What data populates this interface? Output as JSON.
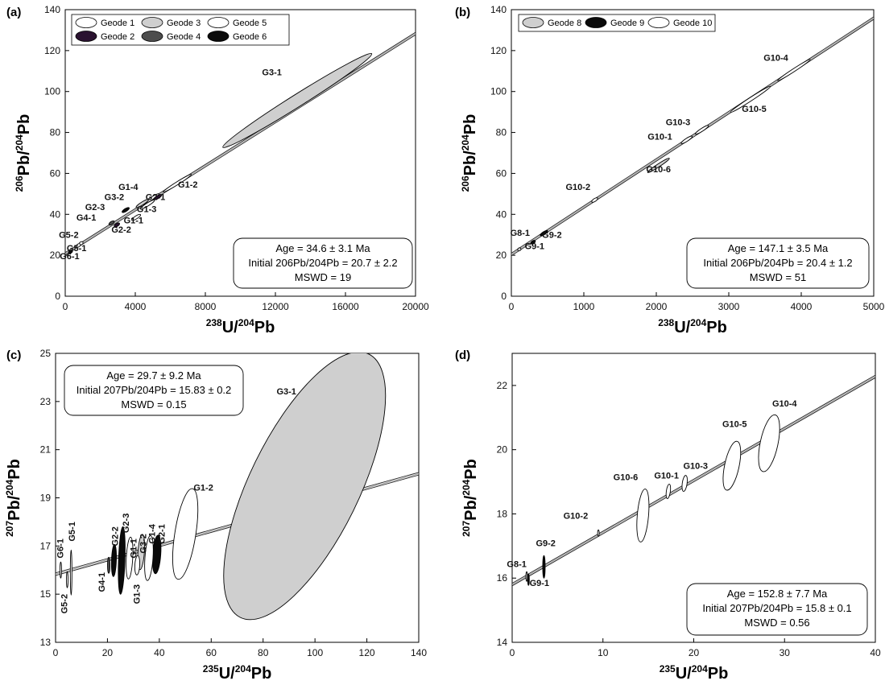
{
  "fill_colors": {
    "open": "#ffffff",
    "light": "#cfcfcf",
    "purple": "#2a1230",
    "dark": "#4d4d4d",
    "black": "#0a0a0a"
  },
  "chart_data": [
    {
      "panel": "(a)",
      "type": "scatter",
      "xlabel": {
        "sup": "238",
        "text": "U/"
      },
      "xlabel2": {
        "sup": "204",
        "text": "Pb"
      },
      "ylabel": {
        "sup": "206",
        "text": "Pb/"
      },
      "ylabel2": {
        "sup": "204",
        "text": "Pb"
      },
      "xlim": [
        0,
        20000
      ],
      "ylim": [
        0,
        140
      ],
      "xticks": [
        0,
        4000,
        8000,
        12000,
        16000,
        20000
      ],
      "yticks": [
        0,
        20,
        40,
        60,
        80,
        100,
        120,
        140
      ],
      "isochron": {
        "intercept": 20.7,
        "slope": 0.00538
      },
      "legend": [
        {
          "name": "Geode 1",
          "fill": "open"
        },
        {
          "name": "Geode 3",
          "fill": "light"
        },
        {
          "name": "Geode 5",
          "fill": "open"
        },
        {
          "name": "Geode 2",
          "fill": "purple"
        },
        {
          "name": "Geode 4",
          "fill": "dark"
        },
        {
          "name": "Geode 6",
          "fill": "black"
        }
      ],
      "stats": [
        "Age = 34.6 ± 3.1 Ma",
        "Initial 206Pb/204Pb = 20.7 ± 2.2",
        "MSWD = 19"
      ],
      "points": [
        {
          "label": "G3-1",
          "x": 13250,
          "y": 95.6,
          "len": 8500,
          "fill": "light",
          "lx": 11800,
          "ly": 108
        },
        {
          "label": "G1-2",
          "x": 6400,
          "y": 55.2,
          "len": 1600,
          "fill": "open",
          "lx": 7000,
          "ly": 53
        },
        {
          "label": "G1-4",
          "x": 4850,
          "y": 47.3,
          "len": 1000,
          "fill": "open",
          "lx": 3600,
          "ly": 52
        },
        {
          "label": "G2-1",
          "x": 5300,
          "y": 48.5,
          "len": 400,
          "fill": "purple",
          "lx": 5150,
          "ly": 47
        },
        {
          "label": "G3-2",
          "x": 4400,
          "y": 45.3,
          "len": 700,
          "fill": "light",
          "lx": 2800,
          "ly": 47
        },
        {
          "label": "G1-3",
          "x": 4700,
          "y": 44.8,
          "len": 800,
          "fill": "open",
          "lx": 4650,
          "ly": 41
        },
        {
          "label": "G2-3",
          "x": 3450,
          "y": 42.1,
          "len": 400,
          "fill": "black",
          "lx": 1700,
          "ly": 42
        },
        {
          "label": "G1-1",
          "x": 4050,
          "y": 38.5,
          "len": 500,
          "fill": "open",
          "lx": 3900,
          "ly": 35.5
        },
        {
          "label": "G4-1",
          "x": 2650,
          "y": 35.8,
          "len": 300,
          "fill": "dark",
          "lx": 1200,
          "ly": 37
        },
        {
          "label": "G2-2",
          "x": 2950,
          "y": 34.8,
          "len": 300,
          "fill": "purple",
          "lx": 3200,
          "ly": 31
        },
        {
          "label": "G5-2",
          "x": 900,
          "y": 25.8,
          "len": 220,
          "fill": "open",
          "lx": 200,
          "ly": 28.5
        },
        {
          "label": "G5-1",
          "x": 750,
          "y": 24.8,
          "len": 220,
          "fill": "open",
          "lx": 650,
          "ly": 22
        },
        {
          "label": "G6-1",
          "x": 300,
          "y": 21.7,
          "len": 220,
          "fill": "black",
          "lx": 250,
          "ly": 18
        }
      ]
    },
    {
      "panel": "(b)",
      "type": "scatter",
      "xlabel": {
        "sup": "238",
        "text": "U/"
      },
      "xlabel2": {
        "sup": "204",
        "text": "Pb"
      },
      "ylabel": {
        "sup": "206",
        "text": "Pb/"
      },
      "ylabel2": {
        "sup": "204",
        "text": "Pb"
      },
      "xlim": [
        0,
        5000
      ],
      "ylim": [
        0,
        140
      ],
      "xticks": [
        0,
        1000,
        2000,
        3000,
        4000,
        5000
      ],
      "yticks": [
        0,
        20,
        40,
        60,
        80,
        100,
        120,
        140
      ],
      "isochron": {
        "intercept": 20.4,
        "slope": 0.0231
      },
      "legend": [
        {
          "name": "Geode 8",
          "fill": "light"
        },
        {
          "name": "Geode 9",
          "fill": "black"
        },
        {
          "name": "Geode 10",
          "fill": "open"
        }
      ],
      "stats": [
        "Age = 147.1 ± 3.5 Ma",
        "Initial 206Pb/204Pb = 20.4 ± 1.2",
        "MSWD = 51"
      ],
      "points": [
        {
          "label": "G10-4",
          "x": 3900,
          "y": 110.5,
          "len": 450,
          "fill": "open",
          "lx": 3650,
          "ly": 115
        },
        {
          "label": "G10-5",
          "x": 3300,
          "y": 96.2,
          "len": 550,
          "fill": "open",
          "lx": 3350,
          "ly": 90
        },
        {
          "label": "G10-3",
          "x": 2630,
          "y": 81.3,
          "len": 180,
          "fill": "open",
          "lx": 2300,
          "ly": 83.5
        },
        {
          "label": "G10-1",
          "x": 2420,
          "y": 76.4,
          "len": 150,
          "fill": "open",
          "lx": 2050,
          "ly": 76.5
        },
        {
          "label": "G10-6",
          "x": 2030,
          "y": 63.9,
          "len": 300,
          "fill": "light",
          "lx": 2030,
          "ly": 60.5
        },
        {
          "label": "G10-2",
          "x": 1150,
          "y": 47.0,
          "len": 80,
          "fill": "open",
          "lx": 920,
          "ly": 52
        },
        {
          "label": "G9-2",
          "x": 450,
          "y": 30.8,
          "len": 100,
          "fill": "black",
          "lx": 560,
          "ly": 28.5
        },
        {
          "label": "G8-1",
          "x": 110,
          "y": 22.9,
          "len": 40,
          "fill": "light",
          "lx": 120,
          "ly": 29.5
        },
        {
          "label": "G9-1",
          "x": 300,
          "y": 26.4,
          "len": 60,
          "fill": "black",
          "lx": 320,
          "ly": 23
        }
      ]
    },
    {
      "panel": "(c)",
      "type": "scatter",
      "xlabel": {
        "sup": "235",
        "text": "U/"
      },
      "xlabel2": {
        "sup": "204",
        "text": "Pb"
      },
      "ylabel": {
        "sup": "207",
        "text": "Pb/"
      },
      "ylabel2": {
        "sup": "204",
        "text": "Pb"
      },
      "xlim": [
        0,
        140
      ],
      "ylim": [
        13,
        25
      ],
      "xticks": [
        0,
        20,
        40,
        60,
        80,
        100,
        120,
        140
      ],
      "yticks": [
        13,
        15,
        17,
        19,
        21,
        23,
        25
      ],
      "isochron": {
        "intercept": 15.83,
        "slope": 0.0298
      },
      "stats": [
        "Age = 29.7 ± 9.2 Ma",
        "Initial 207Pb/204Pb = 15.83 ± 0.2",
        "MSWD = 0.15"
      ],
      "points": [
        {
          "label": "G3-1",
          "x": 96,
          "y": 19.5,
          "rx": 68,
          "ry": 182,
          "rot": 26,
          "fill": "light",
          "lx": 89,
          "ly": 23.3,
          "vert": false
        },
        {
          "label": "G1-2",
          "x": 50,
          "y": 17.5,
          "rx": 13,
          "ry": 57,
          "rot": 9,
          "fill": "open",
          "lx": 57,
          "ly": 19.3,
          "vert": false
        },
        {
          "label": "G2-1",
          "x": 39,
          "y": 16.65,
          "rx": 5,
          "ry": 24,
          "rot": 4,
          "fill": "black",
          "lx": 42,
          "ly": 17.5,
          "vert": true
        },
        {
          "label": "G1-4",
          "x": 36,
          "y": 16.5,
          "rx": 5,
          "ry": 28,
          "rot": 4,
          "fill": "open",
          "lx": 38.3,
          "ly": 17.5,
          "vert": true
        },
        {
          "label": "G3-2",
          "x": 33,
          "y": 16.75,
          "rx": 4,
          "ry": 22,
          "rot": 4,
          "fill": "light",
          "lx": 35,
          "ly": 17.1,
          "vert": true
        },
        {
          "label": "G1-1",
          "x": 28.5,
          "y": 16.5,
          "rx": 4,
          "ry": 26,
          "rot": 3,
          "fill": "open",
          "lx": 31.2,
          "ly": 16.9,
          "vert": true
        },
        {
          "label": "G1-3",
          "x": 31.5,
          "y": 16.2,
          "rx": 3,
          "ry": 12,
          "rot": 3,
          "fill": "open",
          "lx": 32.5,
          "ly": 15.0,
          "vert": true
        },
        {
          "label": "G2-3",
          "x": 25.5,
          "y": 16.4,
          "rx": 4,
          "ry": 42,
          "rot": 2,
          "fill": "black",
          "lx": 28.2,
          "ly": 17.95,
          "vert": true
        },
        {
          "label": "G2-2",
          "x": 22.5,
          "y": 16.4,
          "rx": 3,
          "ry": 20,
          "rot": 2,
          "fill": "black",
          "lx": 24,
          "ly": 17.4,
          "vert": true
        },
        {
          "label": "G4-1",
          "x": 20.5,
          "y": 16.2,
          "rx": 1.5,
          "ry": 10,
          "rot": 0,
          "fill": "dark",
          "lx": 19,
          "ly": 15.5,
          "vert": true
        },
        {
          "label": "G6-1",
          "x": 2,
          "y": 16.0,
          "rx": 1,
          "ry": 10,
          "rot": 0,
          "fill": "open",
          "lx": 3,
          "ly": 16.9,
          "vert": true
        },
        {
          "label": "G5-1",
          "x": 6,
          "y": 15.9,
          "rx": 1,
          "ry": 28,
          "rot": 0,
          "fill": "open",
          "lx": 7.5,
          "ly": 17.6,
          "vert": true
        },
        {
          "label": "G5-2",
          "x": 4.5,
          "y": 15.6,
          "rx": 1,
          "ry": 10,
          "rot": 0,
          "fill": "open",
          "lx": 4.5,
          "ly": 14.6,
          "vert": true
        }
      ]
    },
    {
      "panel": "(d)",
      "type": "scatter",
      "xlabel": {
        "sup": "235",
        "text": "U/"
      },
      "xlabel2": {
        "sup": "204",
        "text": "Pb"
      },
      "ylabel": {
        "sup": "207",
        "text": "Pb/"
      },
      "ylabel2": {
        "sup": "204",
        "text": "Pb"
      },
      "xlim": [
        0,
        40
      ],
      "ylim": [
        14,
        23
      ],
      "xticks": [
        0,
        10,
        20,
        30,
        40
      ],
      "yticks": [
        14,
        16,
        18,
        20,
        22
      ],
      "isochron": {
        "intercept": 15.8,
        "slope": 0.162
      },
      "stats": [
        "Age = 152.8 ± 7.7 Ma",
        "Initial 207Pb/204Pb = 15.8 ± 0.1",
        "MSWD = 0.56"
      ],
      "points": [
        {
          "label": "G10-4",
          "x": 28.3,
          "y": 20.2,
          "rx": 11,
          "ry": 36,
          "rot": 12,
          "fill": "open",
          "lx": 30,
          "ly": 21.35
        },
        {
          "label": "G10-5",
          "x": 24.2,
          "y": 19.5,
          "rx": 9,
          "ry": 31,
          "rot": 12,
          "fill": "open",
          "lx": 24.5,
          "ly": 20.7
        },
        {
          "label": "G10-3",
          "x": 19.0,
          "y": 18.95,
          "rx": 3,
          "ry": 10,
          "rot": 8,
          "fill": "open",
          "lx": 20.2,
          "ly": 19.4
        },
        {
          "label": "G10-1",
          "x": 17.2,
          "y": 18.7,
          "rx": 2.5,
          "ry": 9,
          "rot": 8,
          "fill": "open",
          "lx": 17,
          "ly": 19.1
        },
        {
          "label": "G10-6",
          "x": 14.4,
          "y": 17.95,
          "rx": 7,
          "ry": 33,
          "rot": 5,
          "fill": "open",
          "lx": 12.5,
          "ly": 19.05
        },
        {
          "label": "G10-2",
          "x": 9.5,
          "y": 17.4,
          "rx": 1,
          "ry": 4,
          "rot": 0,
          "fill": "open",
          "lx": 7,
          "ly": 17.85
        },
        {
          "label": "G9-2",
          "x": 3.5,
          "y": 16.35,
          "rx": 1.5,
          "ry": 14,
          "rot": 0,
          "fill": "black",
          "lx": 3.7,
          "ly": 17.0
        },
        {
          "label": "G8-1",
          "x": 1.6,
          "y": 16.05,
          "rx": 1,
          "ry": 6,
          "rot": 0,
          "fill": "light",
          "lx": 0.5,
          "ly": 16.35
        },
        {
          "label": "G9-1",
          "x": 1.8,
          "y": 15.95,
          "rx": 1,
          "ry": 7,
          "rot": 0,
          "fill": "black",
          "lx": 3,
          "ly": 15.75
        }
      ]
    }
  ]
}
